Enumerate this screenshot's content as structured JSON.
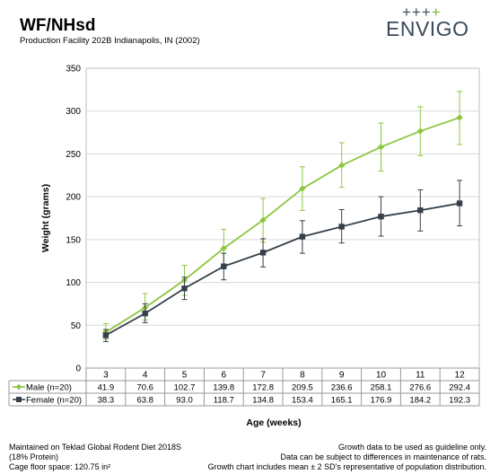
{
  "header": {
    "title": "WF/NHsd",
    "subtitle": "Production Facility 202B Indianapolis, IN (2002)",
    "logo_text": "ENVIGO",
    "logo_plus": "+++"
  },
  "footer": {
    "left": [
      "Maintained on Teklad Global Rodent Diet 2018S",
      "(18% Protein)",
      "Cage floor space: 120.75 in²"
    ],
    "right": [
      "Growth data to be used as guideline only.",
      "Data can be subject to differences in maintenance of rats.",
      "Growth chart includes mean ± 2 SD's representative of population distribution."
    ]
  },
  "chart_data": {
    "type": "line",
    "xlabel": "Age (weeks)",
    "ylabel": "Weight (grams)",
    "ylim": [
      0,
      350
    ],
    "yticks": [
      0,
      50,
      100,
      150,
      200,
      250,
      300,
      350
    ],
    "categories": [
      "3",
      "4",
      "5",
      "6",
      "7",
      "8",
      "9",
      "10",
      "11",
      "12"
    ],
    "grid": true,
    "series": [
      {
        "name": "Male (n=20)",
        "color": "#8dc63f",
        "marker": "diamond",
        "values": [
          41.9,
          70.6,
          102.7,
          139.8,
          172.8,
          209.5,
          236.6,
          258.1,
          276.6,
          292.4
        ],
        "labels": [
          "41.9",
          "70.6",
          "102.7",
          "139.8",
          "172.8",
          "209.5",
          "236.6",
          "258.1",
          "276.6",
          "292.4"
        ],
        "err_low": [
          34,
          56,
          85,
          118,
          147,
          184,
          211,
          230,
          248,
          261
        ],
        "err_high": [
          52,
          87,
          120,
          162,
          198,
          235,
          263,
          286,
          305,
          323
        ]
      },
      {
        "name": "Female (n=20)",
        "color": "#36404a",
        "marker": "square",
        "values": [
          38.3,
          63.8,
          93.0,
          118.7,
          134.8,
          153.4,
          165.1,
          176.9,
          184.2,
          192.3
        ],
        "labels": [
          "38.3",
          "63.8",
          "93.0",
          "118.7",
          "134.8",
          "153.4",
          "165.1",
          "176.9",
          "184.2",
          "192.3"
        ],
        "err_low": [
          31,
          53,
          80,
          103,
          118,
          134,
          146,
          154,
          160,
          166
        ],
        "err_high": [
          45,
          75,
          106,
          134,
          151,
          172,
          185,
          200,
          208,
          219
        ]
      }
    ]
  }
}
